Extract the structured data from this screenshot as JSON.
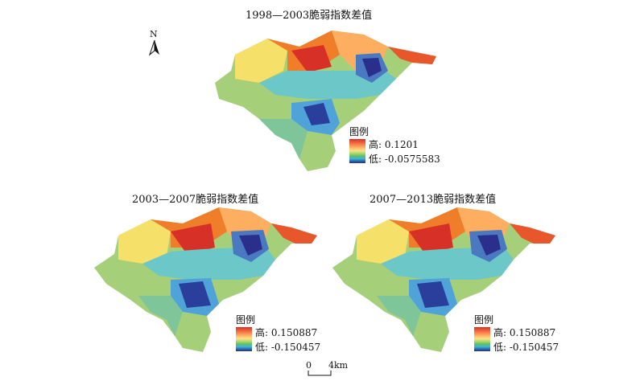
{
  "north_label": "N",
  "scale": {
    "zero": "0",
    "distance": "4km"
  },
  "legend_title": "图例",
  "panels": [
    {
      "title": "1998—2003脆弱指数差值",
      "high": "高: 0.1201",
      "low": "低: -0.0575583"
    },
    {
      "title": "2003—2007脆弱指数差值",
      "high": "高: 0.150887",
      "low": "低: -0.150457"
    },
    {
      "title": "2007—2013脆弱指数差值",
      "high": "高: 0.150887",
      "low": "低: -0.150457"
    }
  ],
  "colors": {
    "high": "#d73027",
    "mid": "#fee08b",
    "low": "#2a2f8c",
    "green": "#a6cf7a",
    "cyan": "#4fb8d8"
  }
}
